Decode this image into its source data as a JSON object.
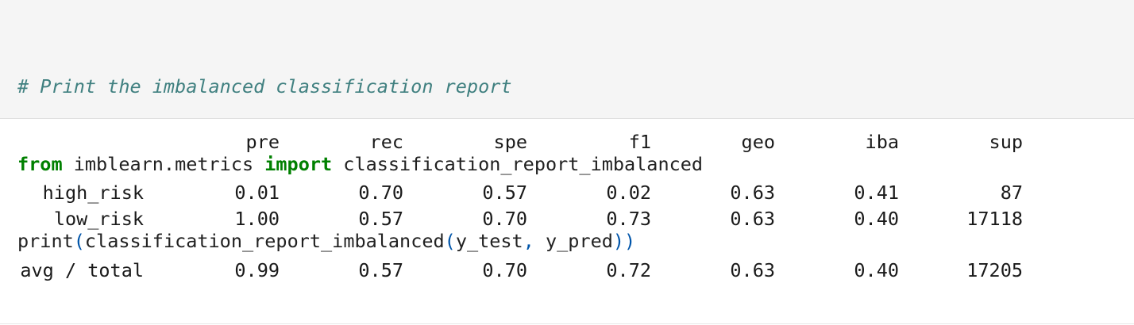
{
  "code": {
    "comment": "# Print the imbalanced classification report",
    "kw_from": "from",
    "module": " imblearn.metrics ",
    "kw_import": "import",
    "imported_name": " classification_report_imbalanced",
    "print_name": "print",
    "open_paren": "(",
    "call_name": "classification_report_imbalanced",
    "open_paren_2": "(",
    "arg1": "y_test",
    "comma": ",",
    "arg2": " y_pred",
    "close_parens": "))"
  },
  "report": {
    "headers": [
      "pre",
      "rec",
      "spe",
      "f1",
      "geo",
      "iba",
      "sup"
    ],
    "rows": [
      {
        "label": "high_risk",
        "values": [
          "0.01",
          "0.70",
          "0.57",
          "0.02",
          "0.63",
          "0.41",
          "87"
        ]
      },
      {
        "label": "low_risk",
        "values": [
          "1.00",
          "0.57",
          "0.70",
          "0.73",
          "0.63",
          "0.40",
          "17118"
        ]
      }
    ],
    "total": {
      "label": "avg / total",
      "values": [
        "0.99",
        "0.57",
        "0.70",
        "0.72",
        "0.63",
        "0.40",
        "17205"
      ]
    }
  }
}
